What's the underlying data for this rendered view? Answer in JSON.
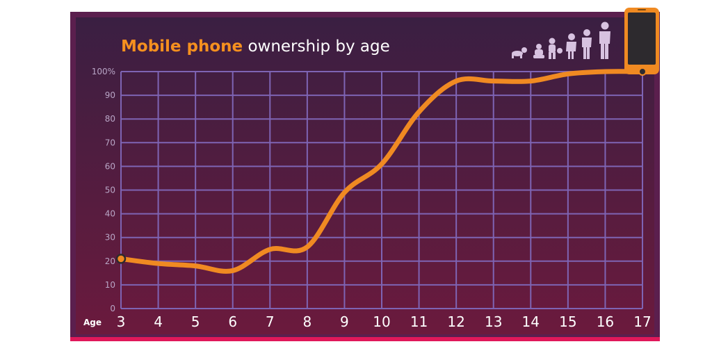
{
  "title": {
    "highlight": "Mobile phone",
    "rest": " ownership by age"
  },
  "colors": {
    "background_top": "#3d2040",
    "background_bottom": "#6d1a3c",
    "frame": "#5b1f4e",
    "bottom_border": "#e0185a",
    "grid": "#7e64b4",
    "line": "#f08a22",
    "title_accent": "#f5901f",
    "title_text": "#ffffff",
    "silhouettes": "#d7c2e0",
    "phone_body": "#f08a22",
    "phone_screen": "#2d2a2e"
  },
  "icons": [
    "baby-crawling-icon",
    "toddler-icon",
    "child-with-ball-icon",
    "child-icon",
    "teen-icon",
    "adult-icon",
    "mobile-phone-icon"
  ],
  "chart_data": {
    "type": "line",
    "title": "Mobile phone ownership by age",
    "xlabel": "Age",
    "ylabel": "",
    "x": [
      3,
      4,
      5,
      6,
      7,
      8,
      9,
      10,
      11,
      12,
      13,
      14,
      15,
      16,
      17
    ],
    "series": [
      {
        "values": [
          21,
          19,
          18,
          16,
          25,
          26,
          49,
          61,
          83,
          96,
          96,
          96,
          99,
          100,
          100
        ]
      }
    ],
    "xlim": [
      3,
      17
    ],
    "ylim": [
      0,
      100
    ],
    "x_ticks": [
      "3",
      "4",
      "5",
      "6",
      "7",
      "8",
      "9",
      "10",
      "11",
      "12",
      "13",
      "14",
      "15",
      "16",
      "17"
    ],
    "y_ticks": [
      "0",
      "10",
      "20",
      "30",
      "40",
      "50",
      "60",
      "70",
      "80",
      "90",
      "100%"
    ],
    "grid": true,
    "legend": "none"
  }
}
